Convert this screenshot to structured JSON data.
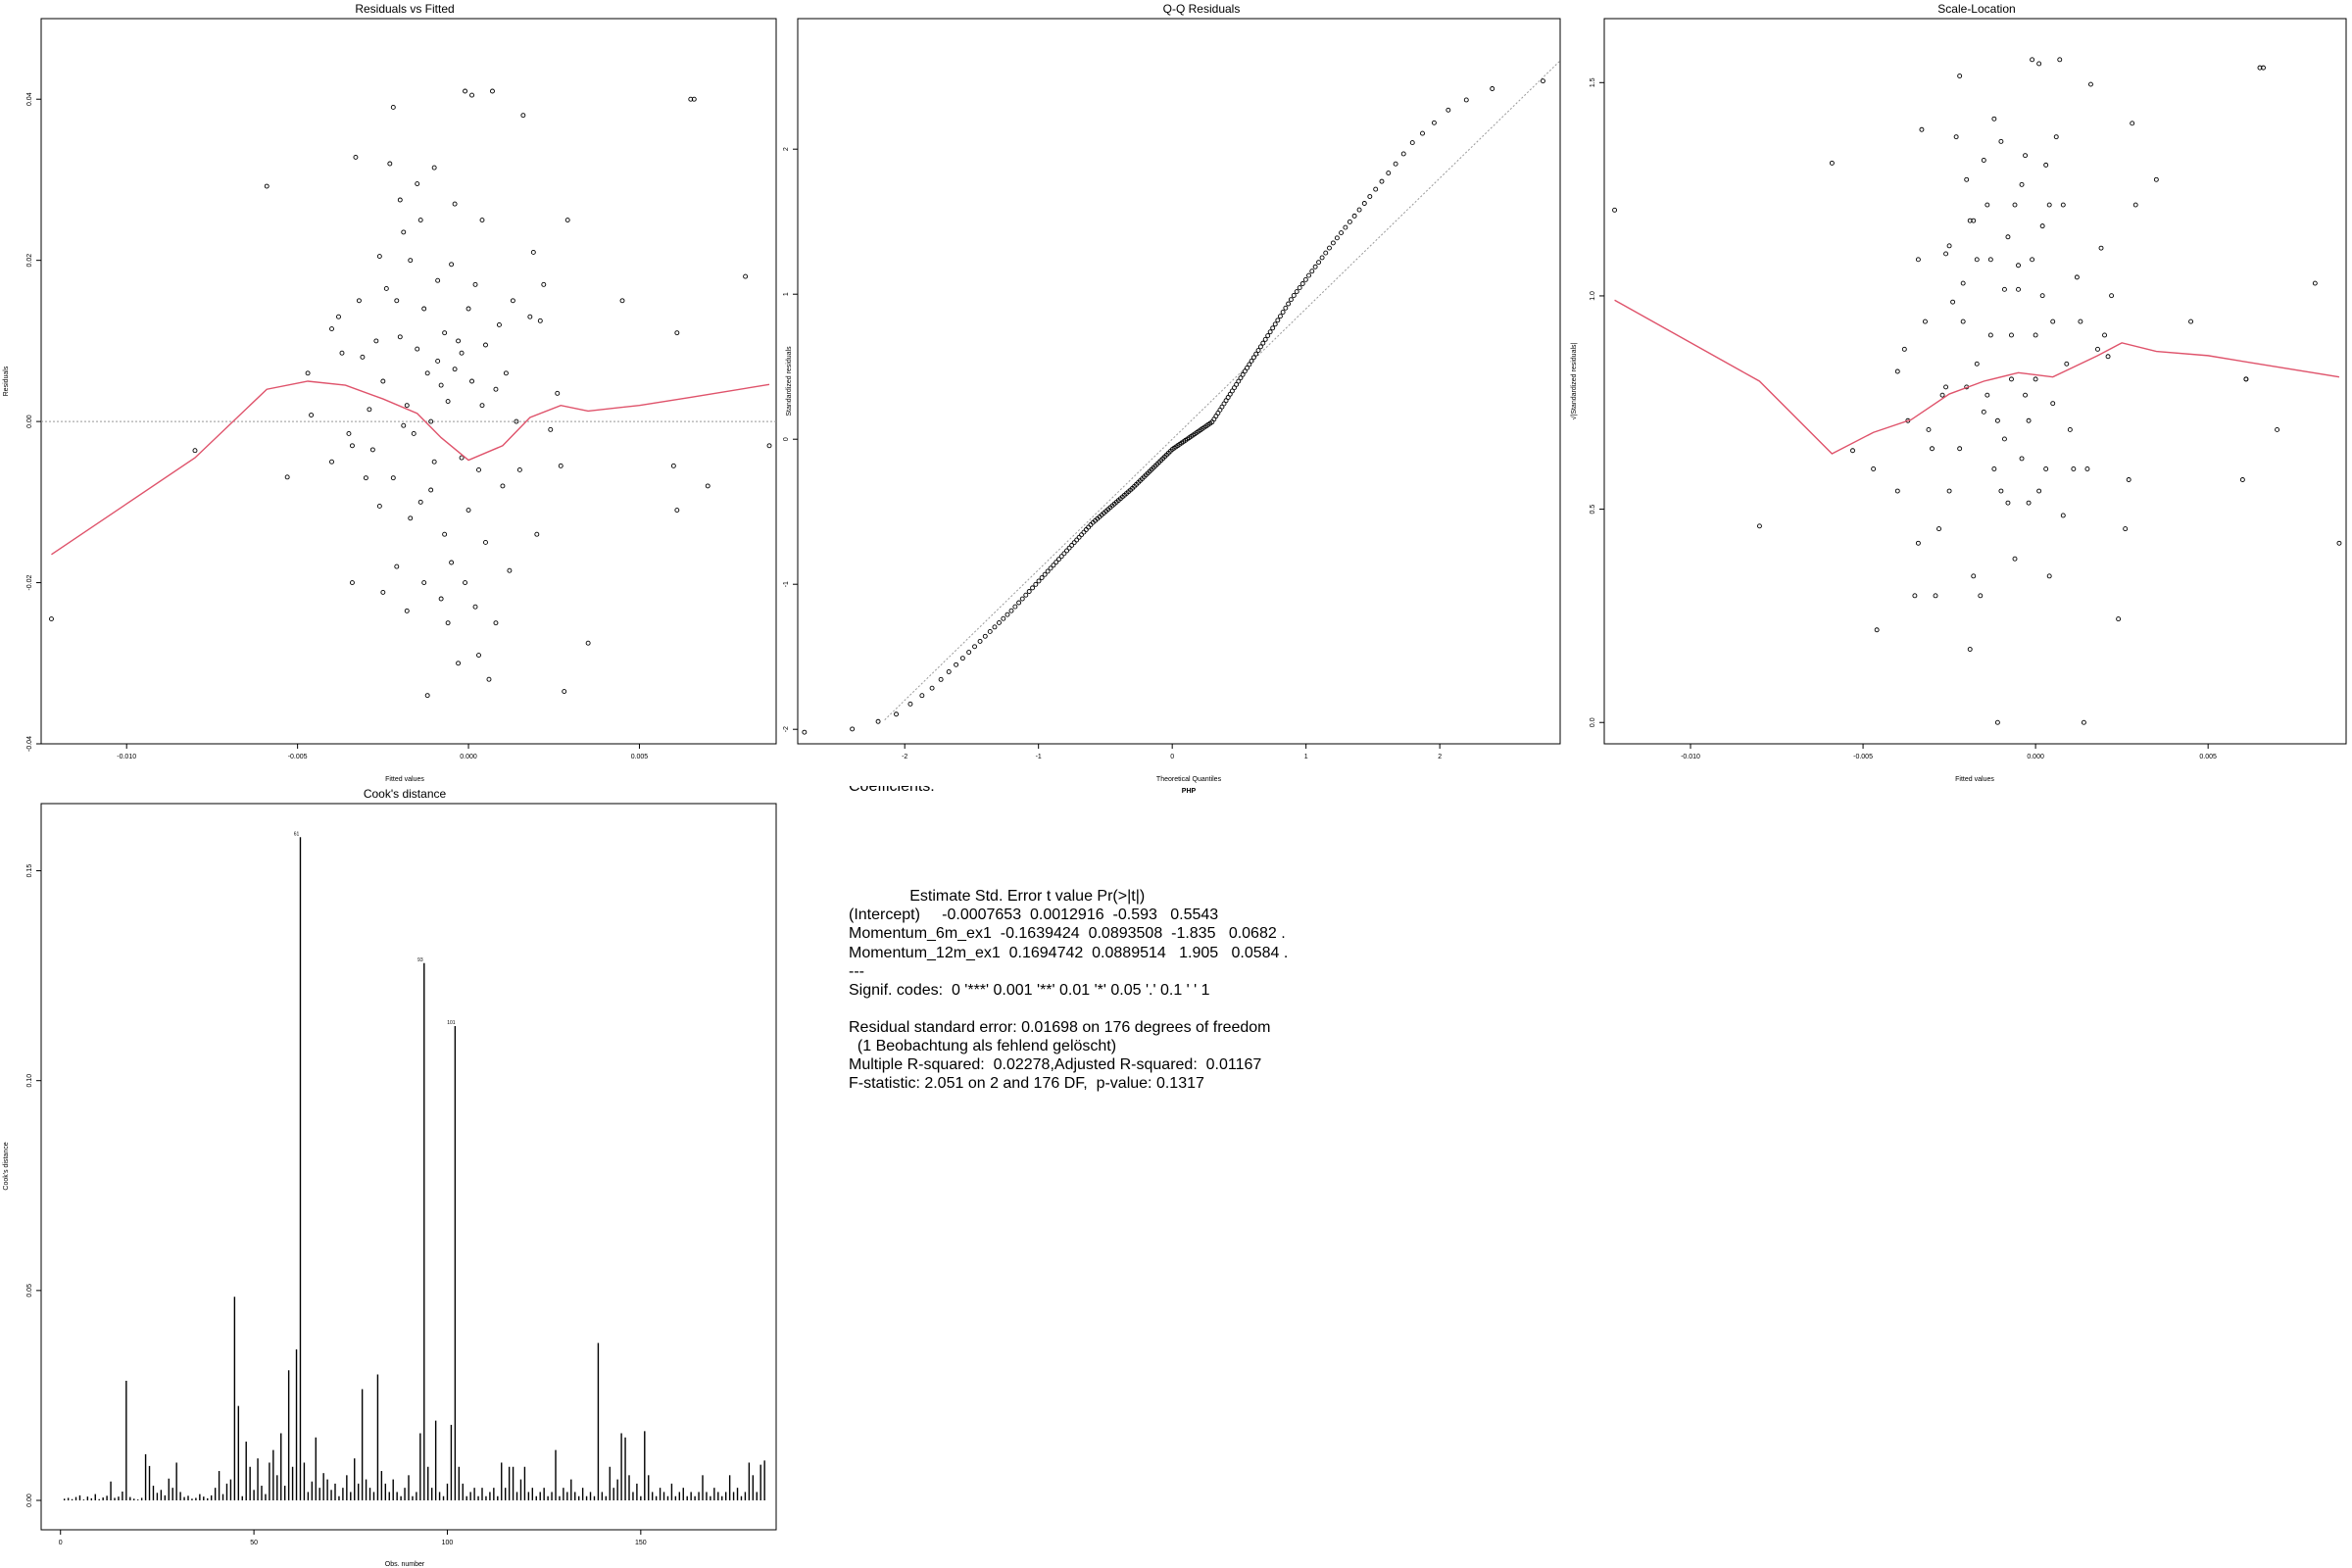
{
  "panels": {
    "residuals_fitted": {
      "title": "Residuals vs Fitted",
      "xlabel": "Fitted values",
      "ylabel": "Residuals"
    },
    "qq": {
      "title": "Q-Q Residuals",
      "xlabel": "Theoretical Quantiles",
      "ylabel": "Standardized residuals",
      "sublabel": "PHP"
    },
    "scale_location": {
      "title": "Scale-Location",
      "xlabel": "Fitted values",
      "ylabel": "√|Standardized residuals|"
    },
    "cooks": {
      "title": "Cook's distance",
      "xlabel": "Obs. number",
      "ylabel": "Cook's distance"
    }
  },
  "summary": {
    "header": "Coefficients:",
    "lines": [
      "              Estimate Std. Error t value Pr(>|t|)",
      "(Intercept)     -0.0007653  0.0012916  -0.593   0.5543",
      "Momentum_6m_ex1  -0.1639424  0.0893508  -1.835   0.0682 .",
      "Momentum_12m_ex1  0.1694742  0.0889514   1.905   0.0584 .",
      "---",
      "Signif. codes:  0 '***' 0.001 '**' 0.01 '*' 0.05 '.' 0.1 ' ' 1",
      "",
      "Residual standard error: 0.01698 on 176 degrees of freedom",
      "  (1 Beobachtung als fehlend gelöscht)",
      "Multiple R-squared:  0.02278,Adjusted R-squared:  0.01167",
      "F-statistic: 2.051 on 2 and 176 DF,  p-value: 0.1317"
    ]
  },
  "colors": {
    "smoother": "#df536b",
    "points": "#000000",
    "reference": "#999999"
  },
  "chart_data": [
    {
      "type": "scatter",
      "title": "Residuals vs Fitted",
      "xlabel": "Fitted values",
      "ylabel": "Residuals",
      "xlim": [
        -0.0125,
        0.009
      ],
      "ylim": [
        -0.04,
        0.05
      ],
      "xticks": [
        -0.01,
        -0.005,
        0.0,
        0.005
      ],
      "xtick_labels": [
        "-0.010",
        "-0.005",
        "0.000",
        "0.005"
      ],
      "yticks": [
        -0.04,
        -0.02,
        0.0,
        0.02,
        0.04
      ],
      "ytick_labels": [
        "-0.04",
        "-0.02",
        "0.00",
        "0.02",
        "0.04"
      ],
      "reference_line": 0,
      "points": [
        [
          -0.0122,
          -0.0245
        ],
        [
          -0.008,
          -0.0036
        ],
        [
          -0.0059,
          0.0292
        ],
        [
          -0.0053,
          -0.0069
        ],
        [
          -0.0047,
          0.006
        ],
        [
          -0.0046,
          0.0008
        ],
        [
          -0.004,
          0.0115
        ],
        [
          -0.004,
          -0.005
        ],
        [
          -0.0038,
          0.013
        ],
        [
          -0.0037,
          0.0085
        ],
        [
          -0.0035,
          -0.0015
        ],
        [
          -0.0034,
          -0.003
        ],
        [
          -0.0034,
          -0.02
        ],
        [
          -0.0033,
          0.0328
        ],
        [
          -0.0032,
          0.015
        ],
        [
          -0.0031,
          0.008
        ],
        [
          -0.003,
          -0.007
        ],
        [
          -0.0029,
          0.0015
        ],
        [
          -0.0028,
          -0.0035
        ],
        [
          -0.0027,
          0.01
        ],
        [
          -0.0026,
          0.0205
        ],
        [
          -0.0026,
          -0.0105
        ],
        [
          -0.0025,
          -0.0212
        ],
        [
          -0.0025,
          0.005
        ],
        [
          -0.0024,
          0.0165
        ],
        [
          -0.0023,
          0.032
        ],
        [
          -0.0022,
          0.039
        ],
        [
          -0.0022,
          -0.007
        ],
        [
          -0.0021,
          0.015
        ],
        [
          -0.0021,
          -0.018
        ],
        [
          -0.002,
          0.0275
        ],
        [
          -0.002,
          0.0105
        ],
        [
          -0.0019,
          -0.0005
        ],
        [
          -0.0019,
          0.0235
        ],
        [
          -0.0018,
          0.002
        ],
        [
          -0.0018,
          -0.0235
        ],
        [
          -0.0017,
          0.02
        ],
        [
          -0.0017,
          -0.012
        ],
        [
          -0.0016,
          -0.0015
        ],
        [
          -0.0015,
          0.0295
        ],
        [
          -0.0015,
          0.009
        ],
        [
          -0.0014,
          -0.01
        ],
        [
          -0.0014,
          0.025
        ],
        [
          -0.0013,
          -0.02
        ],
        [
          -0.0013,
          0.014
        ],
        [
          -0.0012,
          -0.034
        ],
        [
          -0.0012,
          0.006
        ],
        [
          -0.0011,
          0.0
        ],
        [
          -0.0011,
          -0.0085
        ],
        [
          -0.001,
          0.0315
        ],
        [
          -0.001,
          -0.005
        ],
        [
          -0.0009,
          0.0175
        ],
        [
          -0.0009,
          0.0075
        ],
        [
          -0.0008,
          -0.022
        ],
        [
          -0.0008,
          0.0045
        ],
        [
          -0.0007,
          -0.014
        ],
        [
          -0.0007,
          0.011
        ],
        [
          -0.0006,
          0.0025
        ],
        [
          -0.0006,
          -0.025
        ],
        [
          -0.0005,
          0.0195
        ],
        [
          -0.0005,
          -0.0175
        ],
        [
          -0.0004,
          0.027
        ],
        [
          -0.0004,
          0.0065
        ],
        [
          -0.0003,
          -0.03
        ],
        [
          -0.0003,
          0.01
        ],
        [
          -0.0002,
          0.0085
        ],
        [
          -0.0002,
          -0.0045
        ],
        [
          -0.0001,
          0.041
        ],
        [
          -0.0001,
          -0.02
        ],
        [
          0.0,
          0.014
        ],
        [
          0.0,
          -0.011
        ],
        [
          0.0001,
          0.0405
        ],
        [
          0.0001,
          0.005
        ],
        [
          0.0002,
          -0.023
        ],
        [
          0.0002,
          0.017
        ],
        [
          0.0003,
          -0.006
        ],
        [
          0.0003,
          -0.029
        ],
        [
          0.0004,
          0.025
        ],
        [
          0.0004,
          0.002
        ],
        [
          0.0005,
          -0.015
        ],
        [
          0.0005,
          0.0095
        ],
        [
          0.0006,
          -0.032
        ],
        [
          0.0007,
          0.041
        ],
        [
          0.0008,
          0.004
        ],
        [
          0.0008,
          -0.025
        ],
        [
          0.0009,
          0.012
        ],
        [
          0.001,
          -0.008
        ],
        [
          0.0011,
          0.006
        ],
        [
          0.0012,
          -0.0185
        ],
        [
          0.0013,
          0.015
        ],
        [
          0.0014,
          0.0
        ],
        [
          0.0015,
          -0.006
        ],
        [
          0.0016,
          0.038
        ],
        [
          0.0018,
          0.013
        ],
        [
          0.0019,
          0.021
        ],
        [
          0.002,
          -0.014
        ],
        [
          0.0021,
          0.0125
        ],
        [
          0.0022,
          0.017
        ],
        [
          0.0024,
          -0.001
        ],
        [
          0.0026,
          0.0035
        ],
        [
          0.0027,
          -0.0055
        ],
        [
          0.0028,
          -0.0335
        ],
        [
          0.0029,
          0.025
        ],
        [
          0.0035,
          -0.0275
        ],
        [
          0.0045,
          0.015
        ],
        [
          0.006,
          -0.0055
        ],
        [
          0.0061,
          -0.011
        ],
        [
          0.0061,
          0.011
        ],
        [
          0.0065,
          0.04
        ],
        [
          0.0066,
          0.04
        ],
        [
          0.007,
          -0.008
        ],
        [
          0.0081,
          0.018
        ],
        [
          0.0088,
          -0.003
        ]
      ],
      "smoother": [
        [
          -0.0122,
          -0.0165
        ],
        [
          -0.008,
          -0.0045
        ],
        [
          -0.0059,
          0.004
        ],
        [
          -0.0047,
          0.005
        ],
        [
          -0.0036,
          0.0045
        ],
        [
          -0.0025,
          0.0028
        ],
        [
          -0.0015,
          0.001
        ],
        [
          -0.0008,
          -0.002
        ],
        [
          0.0,
          -0.0048
        ],
        [
          0.001,
          -0.003
        ],
        [
          0.0018,
          0.0005
        ],
        [
          0.0027,
          0.002
        ],
        [
          0.0035,
          0.0013
        ],
        [
          0.005,
          0.002
        ],
        [
          0.0065,
          0.003
        ],
        [
          0.0088,
          0.0046
        ]
      ]
    },
    {
      "type": "scatter",
      "title": "Q-Q Residuals",
      "xlabel": "Theoretical Quantiles",
      "ylabel": "Standardized residuals",
      "xlim": [
        -2.8,
        2.9
      ],
      "ylim": [
        -2.1,
        2.9
      ],
      "xticks": [
        -2,
        -1,
        0,
        1,
        2
      ],
      "xtick_labels": [
        "-2",
        "-1",
        "0",
        "1",
        "2"
      ],
      "yticks": [
        -2,
        -1,
        0,
        1,
        2
      ],
      "ytick_labels": [
        "-2",
        "-1",
        "0",
        "1",
        "2"
      ],
      "reference_line": {
        "slope": 0.9,
        "intercept": 0.0
      },
      "curve": [
        [
          -2.75,
          -2.02
        ],
        [
          -2.4,
          -2.0
        ],
        [
          -2.1,
          -1.92
        ],
        [
          -1.8,
          -1.72
        ],
        [
          -1.5,
          -1.45
        ],
        [
          -1.2,
          -1.18
        ],
        [
          -0.9,
          -0.88
        ],
        [
          -0.6,
          -0.58
        ],
        [
          -0.3,
          -0.34
        ],
        [
          0.0,
          -0.07
        ],
        [
          0.3,
          0.12
        ],
        [
          0.6,
          0.55
        ],
        [
          0.9,
          0.98
        ],
        [
          1.2,
          1.35
        ],
        [
          1.5,
          1.7
        ],
        [
          1.8,
          2.05
        ],
        [
          2.1,
          2.3
        ],
        [
          2.4,
          2.42
        ],
        [
          2.75,
          2.47
        ]
      ]
    },
    {
      "type": "scatter",
      "title": "Scale-Location",
      "xlabel": "Fitted values",
      "ylabel": "√|Standardized residuals|",
      "xlim": [
        -0.0125,
        0.009
      ],
      "ylim": [
        -0.05,
        1.65
      ],
      "xticks": [
        -0.01,
        -0.005,
        0.0,
        0.005
      ],
      "xtick_labels": [
        "-0.010",
        "-0.005",
        "0.000",
        "0.005"
      ],
      "yticks": [
        0.0,
        0.5,
        1.0,
        1.5
      ],
      "ytick_labels": [
        "0.0",
        "0.5",
        "1.0",
        "1.5"
      ],
      "smoother": [
        [
          -0.0122,
          0.99
        ],
        [
          -0.008,
          0.8
        ],
        [
          -0.0059,
          0.63
        ],
        [
          -0.0047,
          0.68
        ],
        [
          -0.0036,
          0.71
        ],
        [
          -0.0025,
          0.77
        ],
        [
          -0.0015,
          0.8
        ],
        [
          -0.0005,
          0.82
        ],
        [
          0.0005,
          0.81
        ],
        [
          0.0018,
          0.86
        ],
        [
          0.0025,
          0.89
        ],
        [
          0.0035,
          0.87
        ],
        [
          0.005,
          0.86
        ],
        [
          0.0065,
          0.84
        ],
        [
          0.0088,
          0.81
        ]
      ]
    },
    {
      "type": "bar",
      "title": "Cook's distance",
      "xlabel": "Obs. number",
      "ylabel": "Cook's distance",
      "xlim": [
        -5,
        185
      ],
      "ylim": [
        -0.007,
        0.166
      ],
      "xticks": [
        0,
        50,
        100,
        150
      ],
      "xtick_labels": [
        "0",
        "50",
        "100",
        "150"
      ],
      "yticks": [
        0.0,
        0.05,
        0.1,
        0.15
      ],
      "ytick_labels": [
        "0.00",
        "0.05",
        "0.10",
        "0.15"
      ],
      "labeled_points": [
        {
          "obs": 61,
          "value": 0.158,
          "label": "61"
        },
        {
          "obs": 93,
          "value": 0.128,
          "label": "93"
        },
        {
          "obs": 101,
          "value": 0.113,
          "label": "101"
        }
      ],
      "values": [
        0.0004,
        0.0006,
        0.0003,
        0.0008,
        0.0012,
        0.0002,
        0.0009,
        0.0005,
        0.0015,
        0.0003,
        0.0007,
        0.0011,
        0.0045,
        0.0006,
        0.0009,
        0.0021,
        0.0285,
        0.0008,
        0.0004,
        0.0002,
        0.0006,
        0.011,
        0.0082,
        0.0035,
        0.0018,
        0.0025,
        0.0012,
        0.0052,
        0.003,
        0.009,
        0.002,
        0.0008,
        0.0011,
        0.0004,
        0.0006,
        0.0015,
        0.0009,
        0.0005,
        0.0012,
        0.003,
        0.007,
        0.0015,
        0.004,
        0.005,
        0.0485,
        0.0225,
        0.001,
        0.014,
        0.008,
        0.0025,
        0.01,
        0.0035,
        0.0015,
        0.009,
        0.012,
        0.006,
        0.016,
        0.0035,
        0.031,
        0.008,
        0.036,
        0.158,
        0.009,
        0.002,
        0.0045,
        0.015,
        0.003,
        0.0065,
        0.005,
        0.0025,
        0.004,
        0.001,
        0.003,
        0.006,
        0.002,
        0.01,
        0.004,
        0.0265,
        0.005,
        0.003,
        0.002,
        0.03,
        0.007,
        0.004,
        0.002,
        0.005,
        0.002,
        0.001,
        0.003,
        0.006,
        0.001,
        0.002,
        0.016,
        0.128,
        0.008,
        0.003,
        0.019,
        0.002,
        0.001,
        0.004,
        0.018,
        0.113,
        0.008,
        0.004,
        0.001,
        0.002,
        0.003,
        0.001,
        0.003,
        0.001,
        0.002,
        0.003,
        0.001,
        0.009,
        0.003,
        0.008,
        0.008,
        0.002,
        0.005,
        0.008,
        0.002,
        0.003,
        0.001,
        0.002,
        0.003,
        0.001,
        0.002,
        0.012,
        0.001,
        0.003,
        0.002,
        0.005,
        0.002,
        0.001,
        0.003,
        0.001,
        0.002,
        0.001,
        0.0375,
        0.002,
        0.001,
        0.008,
        0.003,
        0.005,
        0.016,
        0.015,
        0.006,
        0.002,
        0.004,
        0.001,
        0.0165,
        0.006,
        0.002,
        0.001,
        0.003,
        0.002,
        0.001,
        0.004,
        0.001,
        0.002,
        0.003,
        0.001,
        0.002,
        0.001,
        0.002,
        0.006,
        0.002,
        0.001,
        0.003,
        0.002,
        0.001,
        0.002,
        0.006,
        0.002,
        0.003,
        0.001,
        0.002,
        0.009,
        0.006,
        0.002,
        0.0085,
        0.0095
      ]
    }
  ]
}
